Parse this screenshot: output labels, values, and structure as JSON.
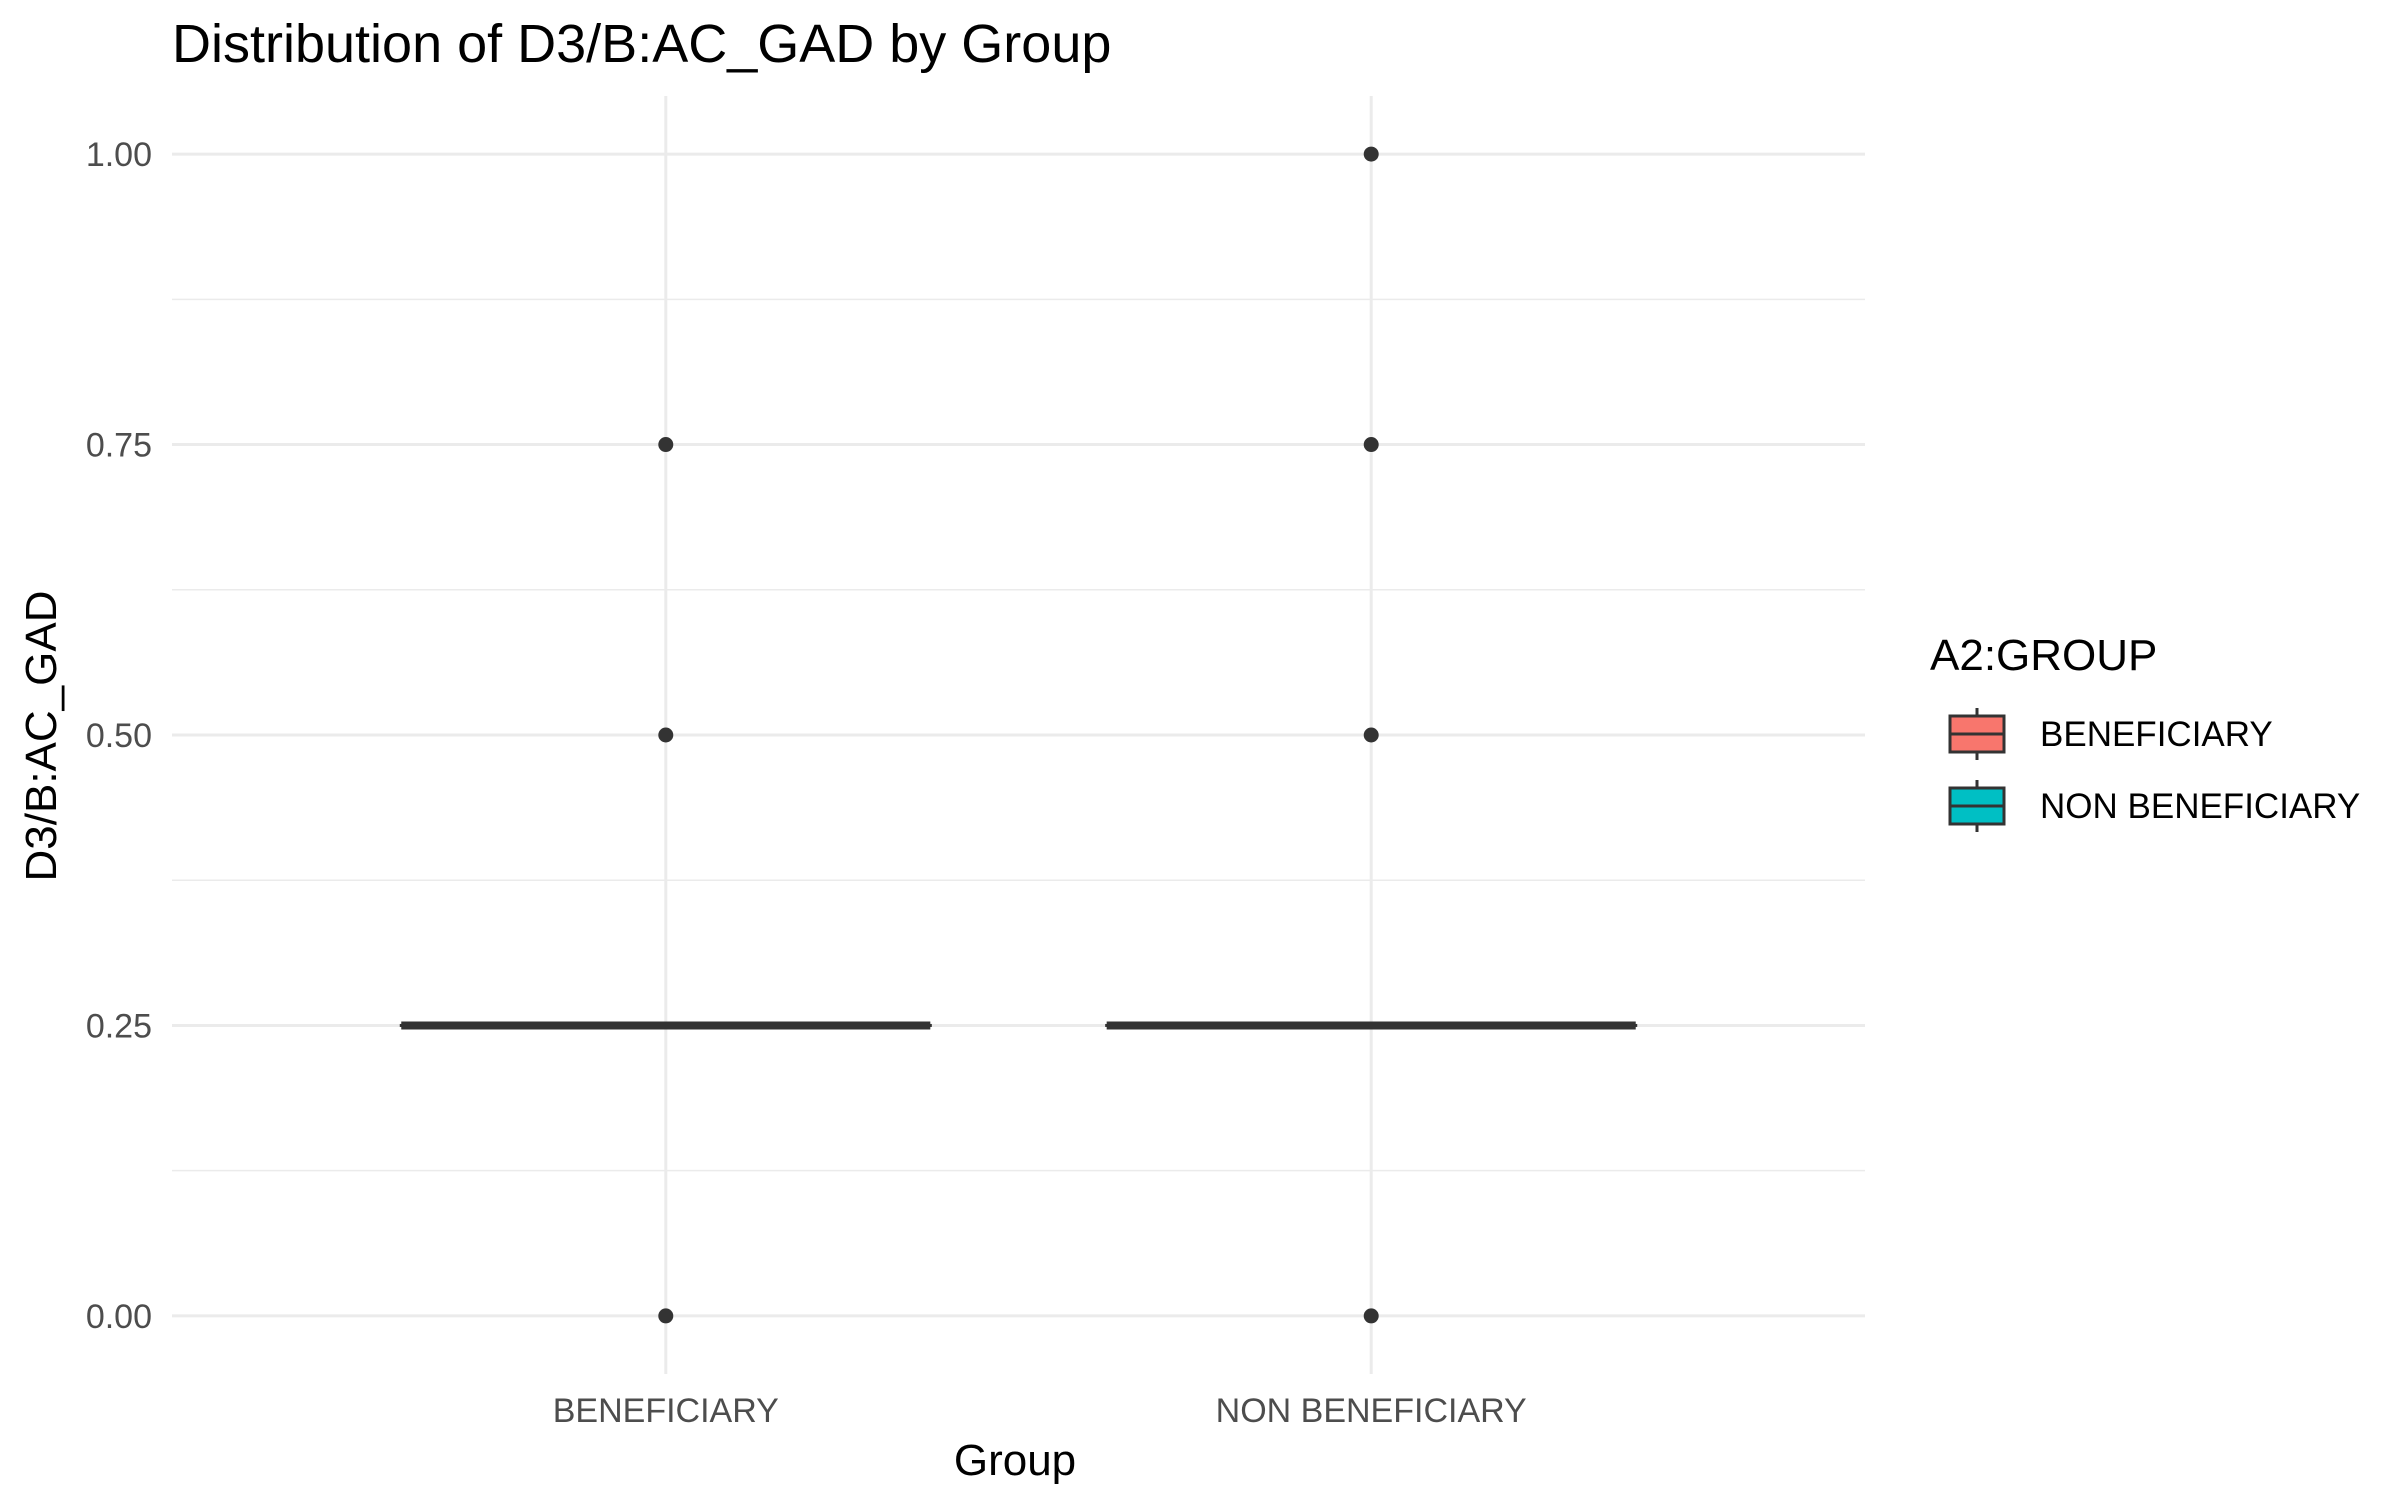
{
  "chart_data": {
    "type": "box",
    "title": "Distribution of D3/B:AC_GAD by Group",
    "xlabel": "Group",
    "ylabel": "D3/B:AC_GAD",
    "categories": [
      "BENEFICIARY",
      "NON BENEFICIARY"
    ],
    "ylim": [
      -0.05,
      1.05
    ],
    "y_ticks": [
      0.0,
      0.25,
      0.5,
      0.75,
      1.0
    ],
    "y_tick_labels": [
      "0.00",
      "0.25",
      "0.50",
      "0.75",
      "1.00"
    ],
    "grid": true,
    "legend": {
      "title": "A2:GROUP",
      "position": "right",
      "entries": [
        "BENEFICIARY",
        "NON BENEFICIARY"
      ]
    },
    "series": [
      {
        "name": "BENEFICIARY",
        "color": "#F8766D",
        "q1": 0.25,
        "median": 0.25,
        "q3": 0.25,
        "whisker_low": 0.25,
        "whisker_high": 0.25,
        "outliers": [
          0.0,
          0.5,
          0.75
        ]
      },
      {
        "name": "NON BENEFICIARY",
        "color": "#00BFC4",
        "q1": 0.25,
        "median": 0.25,
        "q3": 0.25,
        "whisker_low": 0.25,
        "whisker_high": 0.25,
        "outliers": [
          0.0,
          0.5,
          0.75,
          1.0
        ]
      }
    ]
  }
}
